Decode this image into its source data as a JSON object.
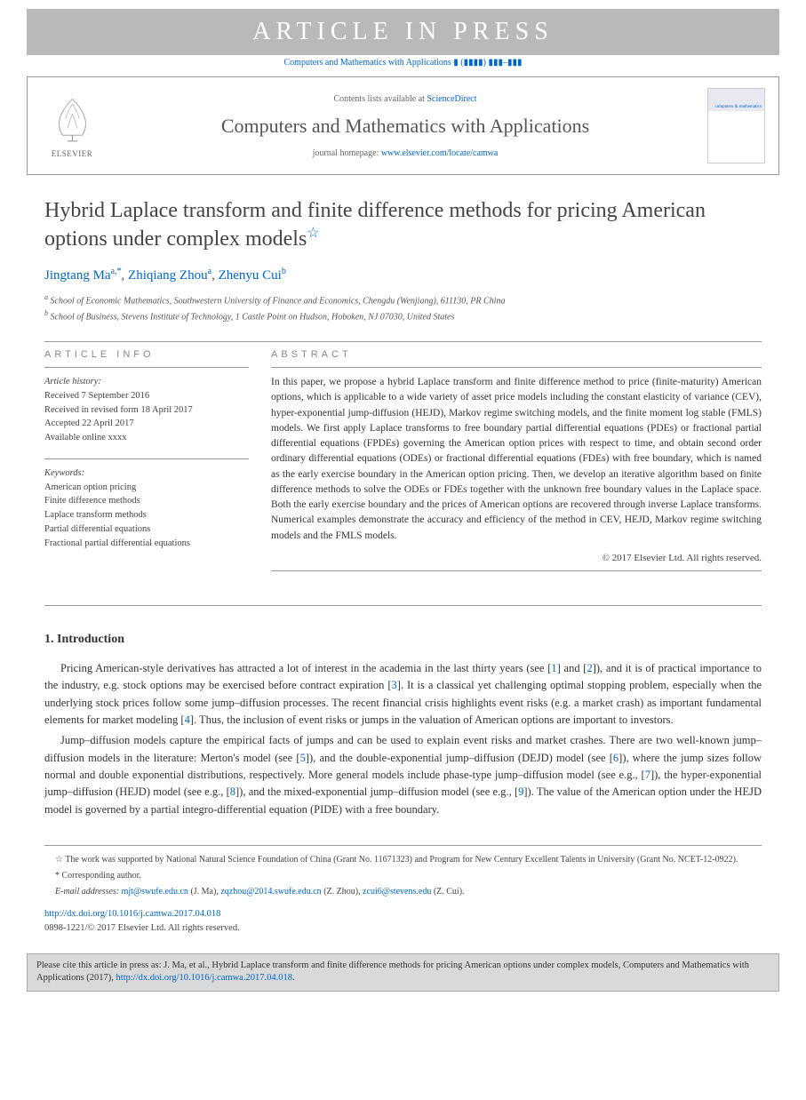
{
  "press_banner": "ARTICLE IN PRESS",
  "journal_ref": "Computers and Mathematics with Applications ▮ (▮▮▮▮) ▮▮▮–▮▮▮",
  "header": {
    "contents_prefix": "Contents lists available at ",
    "contents_link": "ScienceDirect",
    "journal_title": "Computers and Mathematics with Applications",
    "homepage_prefix": "journal homepage: ",
    "homepage_link": "www.elsevier.com/locate/camwa",
    "elsevier": "ELSEVIER",
    "cover_title": "computers & mathematics"
  },
  "article": {
    "title": "Hybrid Laplace transform and finite difference methods for pricing American options under complex models",
    "authors": [
      {
        "name": "Jingtang Ma",
        "sup": "a,*"
      },
      {
        "name": "Zhiqiang Zhou",
        "sup": "a"
      },
      {
        "name": "Zhenyu Cui",
        "sup": "b"
      }
    ],
    "affiliations": [
      {
        "sup": "a",
        "text": "School of Economic Mathematics, Southwestern University of Finance and Economics, Chengdu (Wenjiang), 611130, PR China"
      },
      {
        "sup": "b",
        "text": "School of Business, Stevens Institute of Technology, 1 Castle Point on Hudson, Hoboken, NJ 07030, United States"
      }
    ]
  },
  "info": {
    "header": "ARTICLE INFO",
    "history_label": "Article history:",
    "history": [
      "Received 7 September 2016",
      "Received in revised form 18 April 2017",
      "Accepted 22 April 2017",
      "Available online xxxx"
    ],
    "keywords_label": "Keywords:",
    "keywords": [
      "American option pricing",
      "Finite difference methods",
      "Laplace transform methods",
      "Partial differential equations",
      "Fractional partial differential equations"
    ]
  },
  "abstract": {
    "header": "ABSTRACT",
    "text": "In this paper, we propose a hybrid Laplace transform and finite difference method to price (finite-maturity) American options, which is applicable to a wide variety of asset price models including the constant elasticity of variance (CEV), hyper-exponential jump-diffusion (HEJD), Markov regime switching models, and the finite moment log stable (FMLS) models. We first apply Laplace transforms to free boundary partial differential equations (PDEs) or fractional partial differential equations (FPDEs) governing the American option prices with respect to time, and obtain second order ordinary differential equations (ODEs) or fractional differential equations (FDEs) with free boundary, which is named as the early exercise boundary in the American option pricing. Then, we develop an iterative algorithm based on finite difference methods to solve the ODEs or FDEs together with the unknown free boundary values in the Laplace space. Both the early exercise boundary and the prices of American options are recovered through inverse Laplace transforms. Numerical examples demonstrate the accuracy and efficiency of the method in CEV, HEJD, Markov regime switching models and the FMLS models.",
    "copyright": "© 2017 Elsevier Ltd. All rights reserved."
  },
  "sections": {
    "intro_heading": "1. Introduction",
    "intro_p1": "Pricing American-style derivatives has attracted a lot of interest in the academia in the last thirty years (see [1] and [2]), and it is of practical importance to the industry, e.g. stock options may be exercised before contract expiration [3]. It is a classical yet challenging optimal stopping problem, especially when the underlying stock prices follow some jump–diffusion processes. The recent financial crisis highlights event risks (e.g. a market crash) as important fundamental elements for market modeling [4]. Thus, the inclusion of event risks or jumps in the valuation of American options are important to investors.",
    "intro_p2": "Jump–diffusion models capture the empirical facts of jumps and can be used to explain event risks and market crashes. There are two well-known jump–diffusion models in the literature: Merton's model (see [5]), and the double-exponential jump–diffusion (DEJD) model (see [6]), where the jump sizes follow normal and double exponential distributions, respectively. More general models include phase-type jump–diffusion model (see e.g., [7]), the hyper-exponential jump–diffusion (HEJD) model (see e.g., [8]), and the mixed-exponential jump–diffusion model (see e.g., [9]). The value of the American option under the HEJD model is governed by a partial integro-differential equation (PIDE) with a free boundary."
  },
  "footnotes": {
    "funding": "The work was supported by National Natural Science Foundation of China (Grant No. 11671323) and Program for New Century Excellent Talents in University (Grant No. NCET-12-0922).",
    "corresponding": "Corresponding author.",
    "emails_label": "E-mail addresses:",
    "emails": [
      {
        "addr": "mjt@swufe.edu.cn",
        "who": "(J. Ma)"
      },
      {
        "addr": "zqzhou@2014.swufe.edu.cn",
        "who": "(Z. Zhou)"
      },
      {
        "addr": "zcui6@stevens.edu",
        "who": "(Z. Cui)"
      }
    ],
    "doi": "http://dx.doi.org/10.1016/j.camwa.2017.04.018",
    "issn": "0898-1221/© 2017 Elsevier Ltd. All rights reserved."
  },
  "cite_box": {
    "prefix": "Please cite this article in press as: J. Ma, et al., Hybrid Laplace transform and finite difference methods for pricing American options under complex models, Computers and Mathematics with Applications (2017), ",
    "link": "http://dx.doi.org/10.1016/j.camwa.2017.04.018"
  }
}
